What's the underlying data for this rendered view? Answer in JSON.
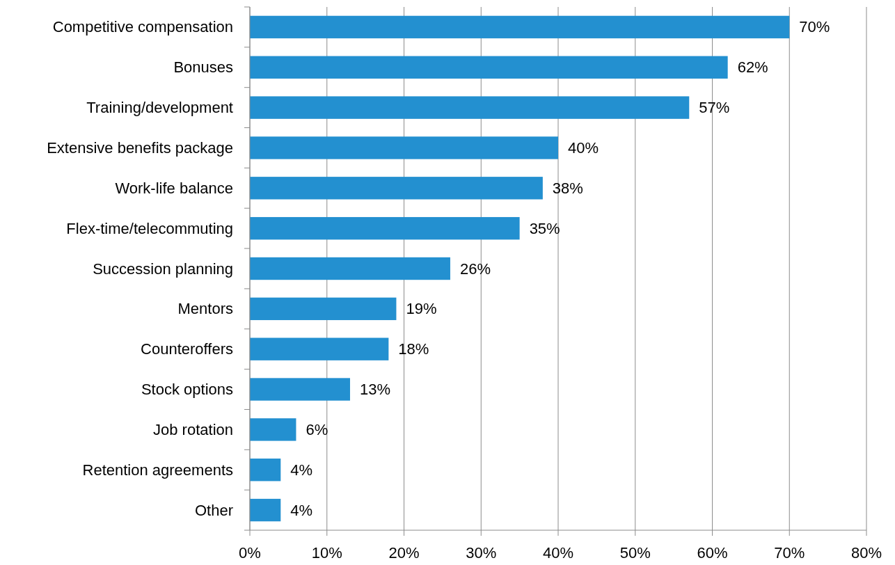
{
  "chart_data": {
    "type": "bar",
    "orientation": "horizontal",
    "categories": [
      "Competitive compensation",
      "Bonuses",
      "Training/development",
      "Extensive benefits package",
      "Work-life balance",
      "Flex-time/telecommuting",
      "Succession planning",
      "Mentors",
      "Counteroffers",
      "Stock options",
      "Job rotation",
      "Retention agreements",
      "Other"
    ],
    "values": [
      70,
      62,
      57,
      40,
      38,
      35,
      26,
      19,
      18,
      13,
      6,
      4,
      4
    ],
    "value_labels": [
      "70%",
      "62%",
      "57%",
      "40%",
      "38%",
      "35%",
      "26%",
      "19%",
      "18%",
      "13%",
      "6%",
      "4%",
      "4%"
    ],
    "color": "#2390d0",
    "xlim": [
      0,
      80
    ],
    "xticks": [
      {
        "value": 0,
        "label": "0%"
      },
      {
        "value": 10,
        "label": "10%"
      },
      {
        "value": 20,
        "label": "20%"
      },
      {
        "value": 30,
        "label": "30%"
      },
      {
        "value": 40,
        "label": "40%"
      },
      {
        "value": 50,
        "label": "50%"
      },
      {
        "value": 60,
        "label": "60%"
      },
      {
        "value": 70,
        "label": "70%"
      },
      {
        "value": 80,
        "label": "80%"
      }
    ],
    "grid": "x"
  }
}
